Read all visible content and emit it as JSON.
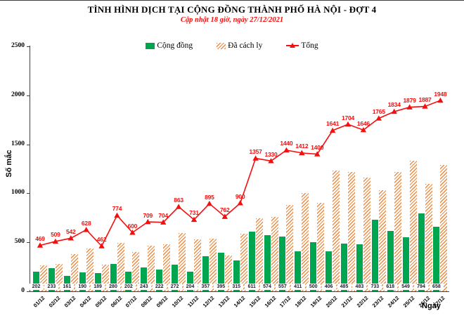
{
  "header": {
    "title": "TÌNH HÌNH DỊCH TẠI CỘNG ĐỒNG THÀNH PHỐ HÀ NỘI - ĐỢT 4",
    "subtitle": "Cập nhật 18 giờ, ngày 27/12/2021"
  },
  "colors": {
    "community_green": "#00a550",
    "quarantine_orange": "#f08a3e",
    "total_red": "#f60d0d",
    "axis": "#404040",
    "bar_label_text": "#1d1d2b"
  },
  "chart_data": {
    "type": "bar",
    "subtype": "grouped bars with line overlay",
    "title": "TÌNH HÌNH DỊCH TẠI CỘNG ĐỒNG THÀNH PHỐ HÀ NỘI - ĐỢT 4",
    "subtitle": "Cập nhật 18 giờ, ngày 27/12/2021",
    "xlabel": "Ngày",
    "ylabel": "Số mắc",
    "ylim": [
      0,
      2500
    ],
    "yticks": [
      0,
      500,
      1000,
      1500,
      2000,
      2500
    ],
    "grid": false,
    "legend_position": "top",
    "categories": [
      "01/12",
      "02/12",
      "03/12",
      "04/12",
      "05/12",
      "06/12",
      "07/12",
      "08/12",
      "09/12",
      "10/12",
      "11/12",
      "12/12",
      "13/12",
      "14/12",
      "15/12",
      "16/12",
      "17/12",
      "18/12",
      "19/12",
      "20/12",
      "21/12",
      "22/12",
      "23/12",
      "24/12",
      "25/12",
      "26/12",
      "27/12"
    ],
    "series": [
      {
        "name": "Cộng đồng",
        "type": "bar",
        "style": "solid",
        "color": "#00a550",
        "labels_shown": true,
        "values": [
          202,
          233,
          161,
          190,
          189,
          280,
          202,
          243,
          222,
          272,
          204,
          357,
          395,
          315,
          611,
          574,
          557,
          411,
          500,
          406,
          485,
          483,
          733,
          618,
          549,
          794,
          658
        ]
      },
      {
        "name": "Đã cách ly",
        "type": "bar",
        "style": "hatched",
        "color": "#f08a3e",
        "labels_shown": false,
        "values": [
          267,
          276,
          381,
          438,
          273,
          494,
          398,
          466,
          482,
          591,
          527,
          538,
          367,
          585,
          746,
          756,
          883,
          1001,
          900,
          1235,
          1219,
          1163,
          1032,
          1216,
          1330,
          1093,
          1290
        ]
      },
      {
        "name": "Tổng",
        "type": "line",
        "marker": "triangle",
        "color": "#f60d0d",
        "labels_shown": true,
        "values": [
          469,
          509,
          542,
          628,
          462,
          774,
          600,
          709,
          704,
          863,
          731,
          895,
          762,
          900,
          1357,
          1330,
          1440,
          1412,
          1400,
          1641,
          1704,
          1646,
          1765,
          1834,
          1879,
          1887,
          1948
        ]
      }
    ]
  }
}
